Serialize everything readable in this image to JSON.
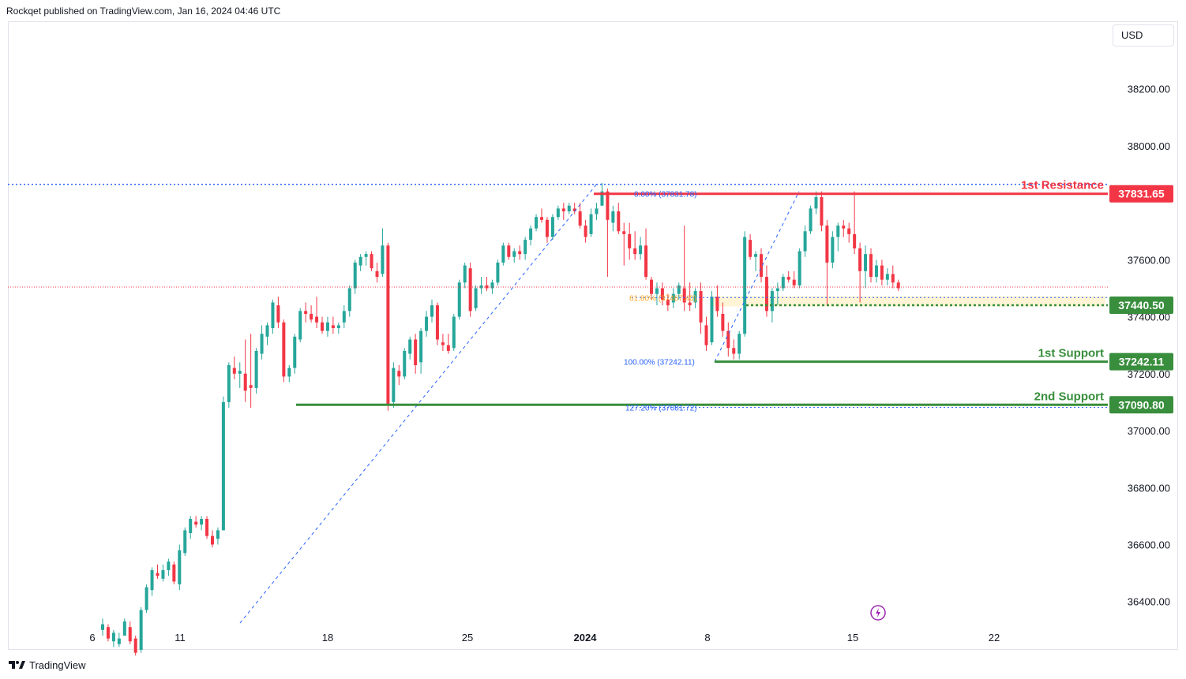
{
  "header": {
    "text": "Rockqet published on TradingView.com, Jan 16, 2024 04:46 UTC"
  },
  "currency": "USD",
  "footer": {
    "brand": "TradingView"
  },
  "colors": {
    "up": "#26a69a",
    "down": "#f23645",
    "resistance": "#f23645",
    "support": "#388e3c",
    "fib": "#2962ff",
    "fib_zone": "#fff2cc"
  },
  "chart_data": {
    "type": "candlestick",
    "y_ticks": [
      "38200.00",
      "38000.00",
      "37600.00",
      "37400.00",
      "37200.00",
      "37000.00",
      "36800.00",
      "36600.00",
      "36400.00"
    ],
    "x_ticks": [
      "6",
      "11",
      "18",
      "25",
      "2024",
      "8",
      "15",
      "22"
    ],
    "ylim": [
      36300,
      38400
    ],
    "levels": [
      {
        "name": "1st Resistance",
        "value": "37831.65",
        "price": 37831.65,
        "color": "#f23645"
      },
      {
        "name": "",
        "value": "37440.50",
        "price": 37440.5,
        "color": "#388e3c"
      },
      {
        "name": "1st Support",
        "value": "37242.11",
        "price": 37242.11,
        "color": "#388e3c"
      },
      {
        "name": "2nd Support",
        "value": "37090.80",
        "price": 37090.8,
        "color": "#388e3c"
      }
    ],
    "fib_labels": [
      {
        "text": "0.00% (37831.78)",
        "price": 37831.78
      },
      {
        "text": "61.80% (37467.40)",
        "price": 37467.4
      },
      {
        "text": "100.00% (37242.11)",
        "price": 37242.11
      },
      {
        "text": "127.20% (37081.72)",
        "price": 37081.72
      }
    ],
    "dotted_high": 37865,
    "last_price": 37504,
    "candles": [
      [
        36300,
        36340,
        36280,
        36320
      ],
      [
        36310,
        36320,
        36260,
        36270
      ],
      [
        36260,
        36300,
        36240,
        36290
      ],
      [
        36250,
        36290,
        36240,
        36270
      ],
      [
        36280,
        36340,
        36280,
        36330
      ],
      [
        36310,
        36330,
        36250,
        36260
      ],
      [
        36270,
        36280,
        36210,
        36220
      ],
      [
        36230,
        36380,
        36220,
        36370
      ],
      [
        36370,
        36460,
        36360,
        36450
      ],
      [
        36440,
        36520,
        36420,
        36510
      ],
      [
        36500,
        36530,
        36480,
        36490
      ],
      [
        36480,
        36530,
        36470,
        36510
      ],
      [
        36510,
        36550,
        36490,
        36540
      ],
      [
        36530,
        36540,
        36460,
        36470
      ],
      [
        36460,
        36600,
        36440,
        36580
      ],
      [
        36570,
        36660,
        36560,
        36650
      ],
      [
        36640,
        36700,
        36620,
        36690
      ],
      [
        36680,
        36700,
        36660,
        36670
      ],
      [
        36670,
        36700,
        36650,
        36690
      ],
      [
        36690,
        36700,
        36620,
        36630
      ],
      [
        36630,
        36650,
        36590,
        36600
      ],
      [
        36620,
        36660,
        36600,
        36650
      ],
      [
        36650,
        37120,
        36650,
        37100
      ],
      [
        37100,
        37240,
        37080,
        37230
      ],
      [
        37220,
        37260,
        37180,
        37200
      ],
      [
        37200,
        37240,
        37150,
        37210
      ],
      [
        37200,
        37320,
        37100,
        37140
      ],
      [
        37160,
        37340,
        37080,
        37150
      ],
      [
        37150,
        37290,
        37130,
        37280
      ],
      [
        37270,
        37370,
        37250,
        37340
      ],
      [
        37330,
        37380,
        37300,
        37370
      ],
      [
        37360,
        37460,
        37340,
        37450
      ],
      [
        37440,
        37470,
        37360,
        37380
      ],
      [
        37380,
        37390,
        37170,
        37190
      ],
      [
        37190,
        37230,
        37170,
        37220
      ],
      [
        37220,
        37340,
        37200,
        37330
      ],
      [
        37320,
        37430,
        37310,
        37420
      ],
      [
        37420,
        37450,
        37380,
        37410
      ],
      [
        37410,
        37440,
        37380,
        37390
      ],
      [
        37400,
        37470,
        37360,
        37380
      ],
      [
        37380,
        37400,
        37340,
        37350
      ],
      [
        37350,
        37400,
        37330,
        37380
      ],
      [
        37370,
        37400,
        37340,
        37360
      ],
      [
        37360,
        37380,
        37340,
        37370
      ],
      [
        37380,
        37440,
        37360,
        37420
      ],
      [
        37420,
        37510,
        37400,
        37500
      ],
      [
        37500,
        37600,
        37480,
        37590
      ],
      [
        37580,
        37620,
        37560,
        37610
      ],
      [
        37610,
        37630,
        37580,
        37620
      ],
      [
        37620,
        37630,
        37560,
        37570
      ],
      [
        37560,
        37590,
        37520,
        37540
      ],
      [
        37550,
        37710,
        37540,
        37650
      ],
      [
        37650,
        37660,
        37070,
        37090
      ],
      [
        37100,
        37240,
        37080,
        37220
      ],
      [
        37210,
        37230,
        37160,
        37190
      ],
      [
        37190,
        37290,
        37180,
        37280
      ],
      [
        37270,
        37330,
        37250,
        37320
      ],
      [
        37320,
        37340,
        37200,
        37230
      ],
      [
        37240,
        37360,
        37200,
        37350
      ],
      [
        37350,
        37420,
        37330,
        37400
      ],
      [
        37400,
        37460,
        37380,
        37440
      ],
      [
        37440,
        37450,
        37300,
        37320
      ],
      [
        37310,
        37340,
        37280,
        37300
      ],
      [
        37300,
        37340,
        37270,
        37280
      ],
      [
        37290,
        37410,
        37280,
        37400
      ],
      [
        37400,
        37530,
        37390,
        37520
      ],
      [
        37520,
        37590,
        37500,
        37580
      ],
      [
        37570,
        37590,
        37400,
        37420
      ],
      [
        37430,
        37510,
        37420,
        37500
      ],
      [
        37500,
        37540,
        37480,
        37510
      ],
      [
        37510,
        37540,
        37490,
        37500
      ],
      [
        37500,
        37530,
        37480,
        37520
      ],
      [
        37520,
        37600,
        37510,
        37590
      ],
      [
        37590,
        37660,
        37580,
        37650
      ],
      [
        37650,
        37660,
        37600,
        37610
      ],
      [
        37610,
        37640,
        37590,
        37630
      ],
      [
        37630,
        37650,
        37600,
        37620
      ],
      [
        37620,
        37680,
        37600,
        37670
      ],
      [
        37670,
        37720,
        37650,
        37710
      ],
      [
        37710,
        37760,
        37700,
        37750
      ],
      [
        37750,
        37780,
        37730,
        37740
      ],
      [
        37740,
        37750,
        37660,
        37680
      ],
      [
        37680,
        37760,
        37670,
        37750
      ],
      [
        37750,
        37790,
        37740,
        37780
      ],
      [
        37780,
        37800,
        37740,
        37770
      ],
      [
        37770,
        37800,
        37760,
        37790
      ],
      [
        37780,
        37800,
        37760,
        37770
      ],
      [
        37770,
        37800,
        37710,
        37720
      ],
      [
        37720,
        37740,
        37660,
        37680
      ],
      [
        37690,
        37780,
        37680,
        37760
      ],
      [
        37760,
        37800,
        37740,
        37780
      ],
      [
        37790,
        37870,
        37790,
        37840
      ],
      [
        37840,
        37850,
        37540,
        37740
      ],
      [
        37730,
        37790,
        37700,
        37770
      ],
      [
        37770,
        37800,
        37690,
        37700
      ],
      [
        37700,
        37730,
        37580,
        37690
      ],
      [
        37690,
        37730,
        37600,
        37640
      ],
      [
        37640,
        37700,
        37600,
        37620
      ],
      [
        37620,
        37680,
        37600,
        37650
      ],
      [
        37650,
        37710,
        37530,
        37540
      ],
      [
        37530,
        37540,
        37460,
        37480
      ],
      [
        37480,
        37520,
        37440,
        37500
      ],
      [
        37500,
        37520,
        37440,
        37460
      ],
      [
        37460,
        37480,
        37420,
        37440
      ],
      [
        37450,
        37500,
        37430,
        37480
      ],
      [
        37480,
        37520,
        37460,
        37510
      ],
      [
        37500,
        37720,
        37420,
        37450
      ],
      [
        37450,
        37520,
        37420,
        37440
      ],
      [
        37450,
        37500,
        37430,
        37490
      ],
      [
        37490,
        37520,
        37340,
        37380
      ],
      [
        37370,
        37400,
        37280,
        37300
      ],
      [
        37310,
        37490,
        37300,
        37470
      ],
      [
        37470,
        37510,
        37400,
        37420
      ],
      [
        37410,
        37450,
        37330,
        37350
      ],
      [
        37350,
        37380,
        37260,
        37290
      ],
      [
        37290,
        37320,
        37250,
        37270
      ],
      [
        37270,
        37350,
        37250,
        37340
      ],
      [
        37340,
        37700,
        37330,
        37680
      ],
      [
        37670,
        37690,
        37600,
        37610
      ],
      [
        37610,
        37630,
        37560,
        37620
      ],
      [
        37620,
        37640,
        37520,
        37540
      ],
      [
        37540,
        37580,
        37400,
        37420
      ],
      [
        37420,
        37500,
        37380,
        37490
      ],
      [
        37490,
        37520,
        37440,
        37500
      ],
      [
        37500,
        37550,
        37490,
        37540
      ],
      [
        37540,
        37560,
        37520,
        37530
      ],
      [
        37530,
        37560,
        37500,
        37510
      ],
      [
        37510,
        37640,
        37500,
        37630
      ],
      [
        37630,
        37720,
        37610,
        37700
      ],
      [
        37700,
        37790,
        37690,
        37780
      ],
      [
        37780,
        37840,
        37760,
        37820
      ],
      [
        37820,
        37840,
        37700,
        37720
      ],
      [
        37720,
        37740,
        37440,
        37590
      ],
      [
        37590,
        37700,
        37570,
        37680
      ],
      [
        37680,
        37730,
        37630,
        37720
      ],
      [
        37720,
        37740,
        37680,
        37710
      ],
      [
        37710,
        37730,
        37660,
        37690
      ],
      [
        37690,
        37840,
        37620,
        37640
      ],
      [
        37640,
        37660,
        37450,
        37560
      ],
      [
        37560,
        37650,
        37500,
        37620
      ],
      [
        37620,
        37640,
        37520,
        37540
      ],
      [
        37540,
        37600,
        37520,
        37580
      ],
      [
        37580,
        37600,
        37510,
        37530
      ],
      [
        37530,
        37570,
        37510,
        37550
      ],
      [
        37550,
        37580,
        37500,
        37520
      ],
      [
        37520,
        37530,
        37490,
        37500
      ]
    ]
  }
}
